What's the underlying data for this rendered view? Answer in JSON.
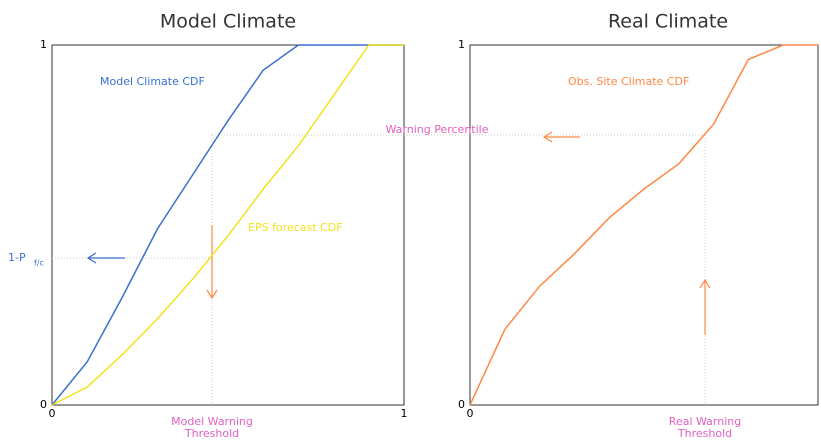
{
  "chart_data": [
    {
      "type": "line",
      "title": "Model Climate",
      "x": [
        0,
        0.1,
        0.2,
        0.3,
        0.4,
        0.5,
        0.6,
        0.7,
        0.8,
        0.9,
        1
      ],
      "series": [
        {
          "name": "Model Climate CDF",
          "color": "#3a6fd0",
          "values": [
            0,
            0.12,
            0.3,
            0.49,
            0.64,
            0.79,
            0.93,
            1,
            1,
            1,
            1
          ]
        },
        {
          "name": "EPS forecast CDF",
          "color": "#f2e21c",
          "values": [
            0,
            0.05,
            0.14,
            0.24,
            0.35,
            0.47,
            0.6,
            0.72,
            0.86,
            1,
            1
          ]
        }
      ],
      "xlim": [
        0,
        1
      ],
      "ylim": [
        0,
        1
      ],
      "xticks": [
        0,
        1
      ],
      "yticks": [
        0,
        1
      ],
      "annotations": [
        "1-P",
        "f/c",
        "Model Warning",
        "Threshold"
      ]
    },
    {
      "type": "line",
      "title": "Real Climate",
      "x": [
        0,
        0.1,
        0.2,
        0.3,
        0.4,
        0.5,
        0.6,
        0.7,
        0.8,
        0.9,
        1
      ],
      "series": [
        {
          "name": "Obs. Site Climate CDF",
          "color": "#ff8844",
          "values": [
            0,
            0.21,
            0.33,
            0.42,
            0.52,
            0.6,
            0.67,
            0.78,
            0.96,
            1,
            1
          ]
        }
      ],
      "xlim": [
        0,
        1
      ],
      "ylim": [
        0,
        1
      ],
      "xticks": [
        0
      ],
      "yticks": [
        0,
        1
      ],
      "annotations": [
        "Warning Percentile",
        "Real Warning",
        "Threshold"
      ]
    }
  ]
}
